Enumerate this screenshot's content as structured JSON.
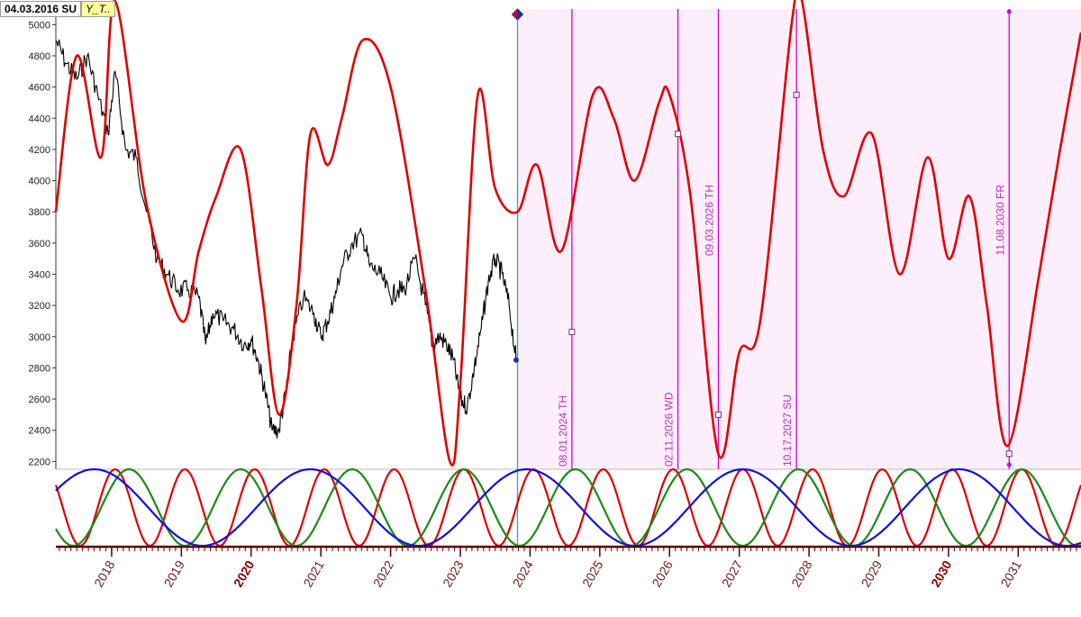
{
  "header": {
    "date_label": "04.03.2016 SU",
    "symbol_label": "Y_T.."
  },
  "colors": {
    "price": "#000000",
    "cycle_composite": "#e00000",
    "projection_bg": "#fdeefb",
    "projection_line": "#d100d1",
    "date_text": "#c030c0",
    "today_line": "#2aa7b8",
    "wave_red": "#e00000",
    "wave_green": "#1a8a1a",
    "wave_blue": "#1010e0",
    "axis_tick": "#5a0000",
    "year_label": "#6b1a1a",
    "marker_blue": "#1a2fa8"
  },
  "chart_data": {
    "type": "line",
    "title": "",
    "xlabel": "",
    "ylabel": "",
    "xlim": [
      2017.2,
      2031.9
    ],
    "ylim": [
      2150,
      5100
    ],
    "y_ticks": [
      2200,
      2400,
      2600,
      2800,
      3000,
      3200,
      3400,
      3600,
      3800,
      4000,
      4200,
      4400,
      4600,
      4800,
      5000
    ],
    "year_ticks": [
      {
        "year": 2018,
        "label": "2018",
        "bold": false
      },
      {
        "year": 2019,
        "label": "2019",
        "bold": false
      },
      {
        "year": 2020,
        "label": "2020",
        "bold": true
      },
      {
        "year": 2021,
        "label": "2021",
        "bold": false
      },
      {
        "year": 2022,
        "label": "2022",
        "bold": false
      },
      {
        "year": 2023,
        "label": "2023",
        "bold": false
      },
      {
        "year": 2024,
        "label": "2024",
        "bold": false
      },
      {
        "year": 2025,
        "label": "2025",
        "bold": false
      },
      {
        "year": 2026,
        "label": "2026",
        "bold": false
      },
      {
        "year": 2027,
        "label": "2027",
        "bold": false
      },
      {
        "year": 2028,
        "label": "2028",
        "bold": false
      },
      {
        "year": 2029,
        "label": "2029",
        "bold": false
      },
      {
        "year": 2030,
        "label": "2030",
        "bold": true
      },
      {
        "year": 2031,
        "label": "2031",
        "bold": false
      }
    ],
    "projection_start": 2023.82,
    "series": [
      {
        "name": "price",
        "x": [
          2017.2,
          2017.35,
          2017.5,
          2017.65,
          2017.8,
          2017.95,
          2018.05,
          2018.2,
          2018.35,
          2018.5,
          2018.65,
          2018.8,
          2018.95,
          2019.1,
          2019.25,
          2019.35,
          2019.45,
          2019.6,
          2019.75,
          2019.9,
          2020.0,
          2020.1,
          2020.2,
          2020.3,
          2020.4,
          2020.5,
          2020.6,
          2020.75,
          2020.9,
          2021.0,
          2021.1,
          2021.2,
          2021.3,
          2021.45,
          2021.6,
          2021.7,
          2021.85,
          2022.0,
          2022.1,
          2022.2,
          2022.35,
          2022.5,
          2022.6,
          2022.7,
          2022.8,
          2022.9,
          2023.0,
          2023.1,
          2023.2,
          2023.3,
          2023.4,
          2023.5,
          2023.6,
          2023.7,
          2023.8
        ],
        "y": [
          4900,
          4750,
          4650,
          4800,
          4550,
          4300,
          4700,
          4200,
          4150,
          3800,
          3500,
          3400,
          3300,
          3300,
          3250,
          2950,
          3150,
          3100,
          3050,
          2950,
          2980,
          2850,
          2650,
          2400,
          2400,
          2650,
          3000,
          3250,
          3150,
          3000,
          3100,
          3250,
          3450,
          3600,
          3650,
          3450,
          3400,
          3250,
          3300,
          3300,
          3500,
          3200,
          2950,
          3000,
          2950,
          2850,
          2600,
          2550,
          2800,
          3050,
          3350,
          3500,
          3400,
          3200,
          2850
        ]
      },
      {
        "name": "cycle_composite",
        "x": [
          2017.2,
          2017.5,
          2017.85,
          2018.05,
          2018.5,
          2019.0,
          2019.25,
          2019.5,
          2019.85,
          2020.15,
          2020.4,
          2020.65,
          2020.85,
          2021.1,
          2021.3,
          2021.6,
          2022.0,
          2022.5,
          2022.85,
          2023.0,
          2023.25,
          2023.5,
          2023.82,
          2024.1,
          2024.45,
          2024.9,
          2025.2,
          2025.5,
          2025.85,
          2026.0,
          2026.3,
          2026.7,
          2027.0,
          2027.3,
          2027.75,
          2027.9,
          2028.2,
          2028.5,
          2028.9,
          2029.3,
          2029.7,
          2030.0,
          2030.3,
          2030.55,
          2030.85,
          2031.3,
          2031.6,
          2031.9
        ],
        "y": [
          3800,
          4800,
          4150,
          5150,
          3850,
          3100,
          3550,
          3900,
          4200,
          3300,
          2500,
          3200,
          4300,
          4100,
          4400,
          4900,
          4600,
          3300,
          2200,
          2700,
          4550,
          3950,
          3800,
          4100,
          3550,
          4550,
          4400,
          4000,
          4500,
          4550,
          3900,
          2250,
          2900,
          3100,
          5000,
          5150,
          4200,
          3900,
          4300,
          3400,
          4150,
          3500,
          3900,
          3200,
          2300,
          3400,
          4200,
          4950
        ]
      }
    ],
    "projection_dates": [
      {
        "x": 2024.6,
        "label": "08.01.2024 TH",
        "marker_value": 3030,
        "label_pos": "bottom"
      },
      {
        "x": 2026.12,
        "label": "02.11.2026 WD",
        "marker_value": 4300,
        "label_pos": "bottom"
      },
      {
        "x": 2026.7,
        "label": "09.03.2026 TH",
        "marker_value": 2500,
        "label_pos": "top"
      },
      {
        "x": 2027.82,
        "label": "10.17.2027 SU",
        "marker_value": 4550,
        "label_pos": "bottom"
      },
      {
        "x": 2030.87,
        "label": "11.08.2030 FR",
        "marker_value": 2250,
        "label_pos": "top"
      }
    ],
    "waves": [
      {
        "name": "red",
        "period": 1.0,
        "peak_x": 2018.05
      },
      {
        "name": "green",
        "period": 1.6,
        "peak_x": 2018.25
      },
      {
        "name": "blue",
        "period": 3.1,
        "peak_x": 2017.75
      }
    ]
  }
}
